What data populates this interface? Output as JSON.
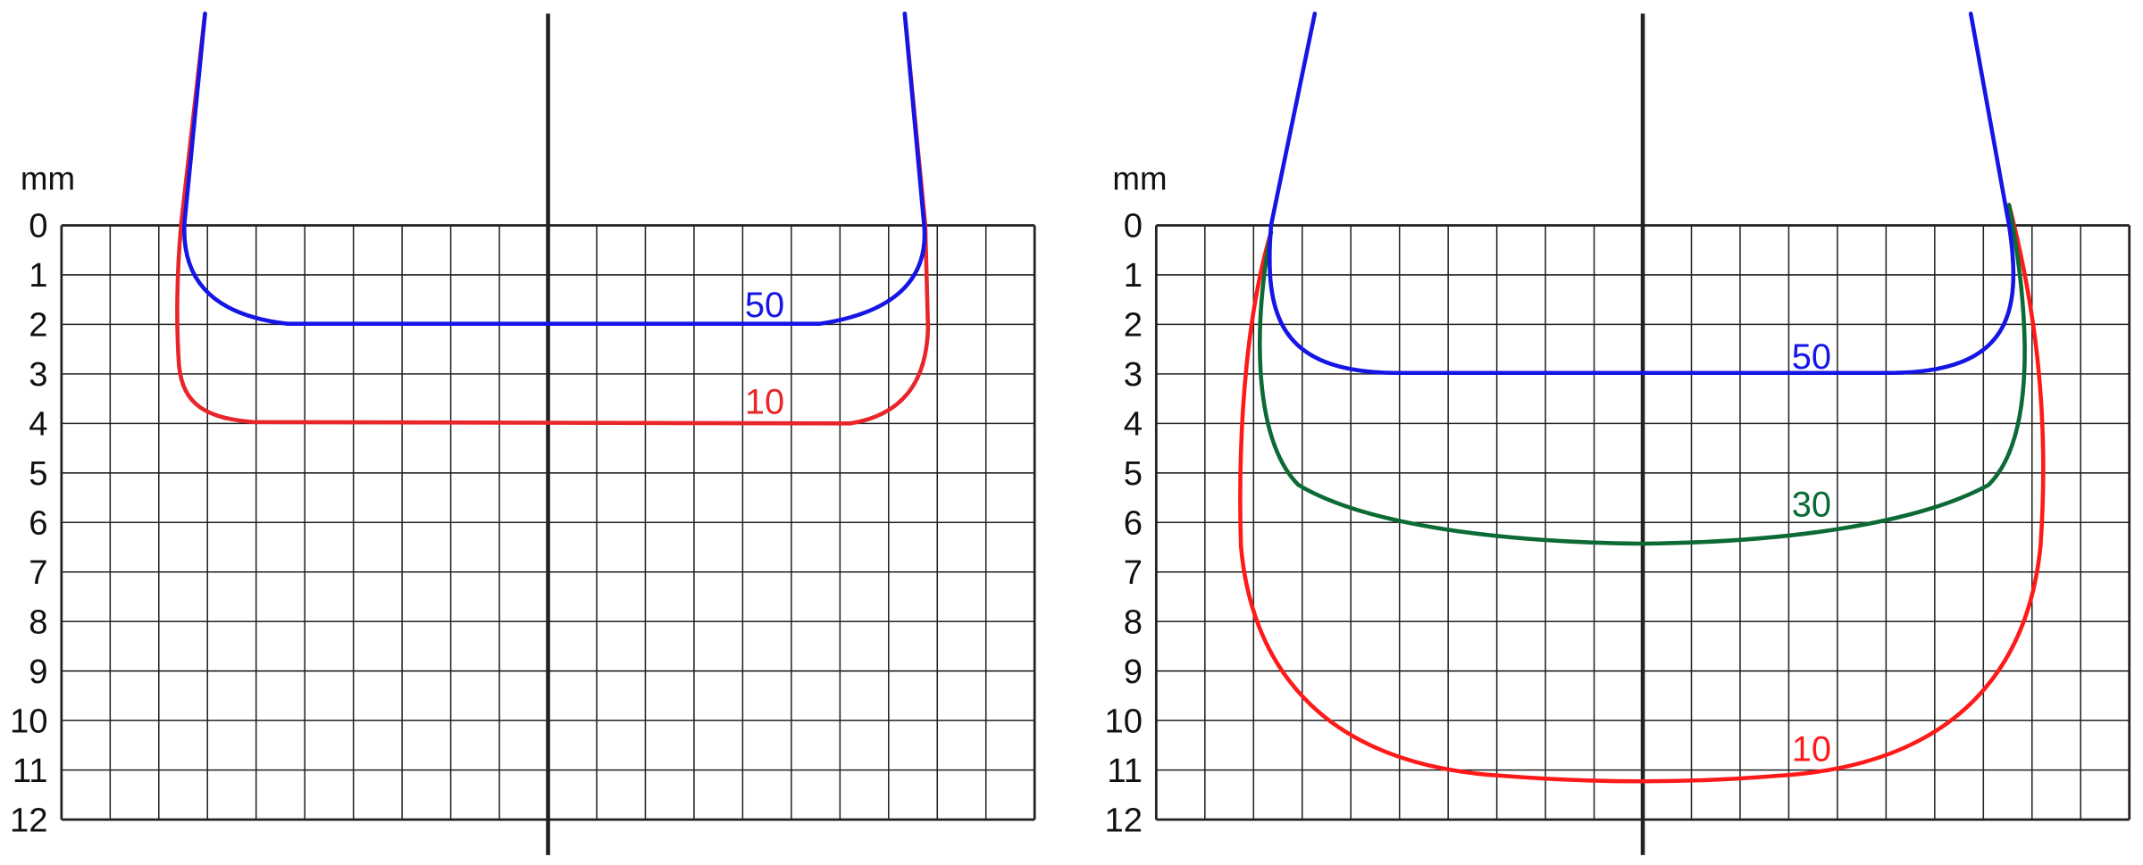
{
  "panels": [
    {
      "unit": "mm",
      "depth_ticks": [
        0,
        1,
        2,
        3,
        4,
        5,
        6,
        7,
        8,
        9,
        10,
        11,
        12
      ],
      "curve_labels": [
        "50",
        "10"
      ]
    },
    {
      "unit": "mm",
      "depth_ticks": [
        0,
        1,
        2,
        3,
        4,
        5,
        6,
        7,
        8,
        9,
        10,
        11,
        12
      ],
      "curve_labels": [
        "50",
        "30",
        "10"
      ]
    }
  ]
}
